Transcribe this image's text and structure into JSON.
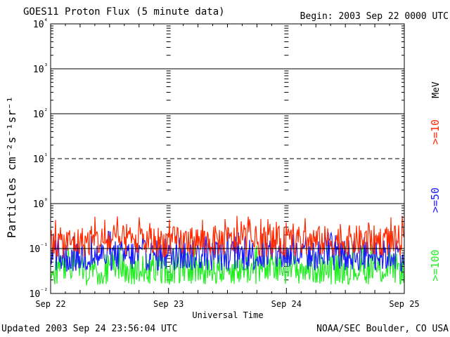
{
  "header": {
    "title": "GOES11 Proton Flux (5 minute data)",
    "begin": "Begin: 2003 Sep 22 0000 UTC"
  },
  "footer": {
    "updated": "Updated 2003 Sep 24 23:56:04 UTC",
    "credit": "NOAA/SEC Boulder, CO USA"
  },
  "chart_data": {
    "type": "line",
    "title": "GOES11 Proton Flux (5 minute data)",
    "xlabel": "Universal Time",
    "ylabel": "Particles cm⁻²s⁻¹sr⁻¹",
    "yscale": "log",
    "ylim": [
      0.01,
      10000
    ],
    "y_ticks": [
      {
        "value": 0.01,
        "label": "10⁻²"
      },
      {
        "value": 0.1,
        "label": "10⁻¹"
      },
      {
        "value": 1,
        "label": "10⁰"
      },
      {
        "value": 10,
        "label": "10¹"
      },
      {
        "value": 100,
        "label": "10²"
      },
      {
        "value": 1000,
        "label": "10³"
      },
      {
        "value": 10000,
        "label": "10⁴"
      }
    ],
    "x_ticks": [
      "Sep 22",
      "Sep 23",
      "Sep 24",
      "Sep 25"
    ],
    "xlim": [
      "2003-09-22",
      "2003-09-25"
    ],
    "reference_lines": [
      {
        "value": 10,
        "style": "dashed"
      },
      {
        "value": 0.1,
        "style": "solid",
        "color": "#000000"
      }
    ],
    "grid": true,
    "legend_unit": "MeV",
    "series": [
      {
        "name": ">=10",
        "color": "#ff2a00",
        "x": [
          "2003-09-22 00:00",
          "2003-09-22 12:00",
          "2003-09-23 00:00",
          "2003-09-23 12:00",
          "2003-09-24 00:00",
          "2003-09-24 12:00",
          "2003-09-25 00:00"
        ],
        "values": [
          0.13,
          0.15,
          0.14,
          0.15,
          0.14,
          0.15,
          0.15
        ]
      },
      {
        "name": ">=50",
        "color": "#1a1aff",
        "x": [
          "2003-09-22 00:00",
          "2003-09-22 12:00",
          "2003-09-23 00:00",
          "2003-09-23 12:00",
          "2003-09-24 00:00",
          "2003-09-24 12:00",
          "2003-09-25 00:00"
        ],
        "values": [
          0.06,
          0.07,
          0.07,
          0.07,
          0.07,
          0.07,
          0.07
        ]
      },
      {
        "name": ">=100",
        "color": "#22ee22",
        "x": [
          "2003-09-22 00:00",
          "2003-09-22 12:00",
          "2003-09-23 00:00",
          "2003-09-23 12:00",
          "2003-09-24 00:00",
          "2003-09-24 12:00",
          "2003-09-25 00:00"
        ],
        "values": [
          0.03,
          0.035,
          0.035,
          0.035,
          0.035,
          0.035,
          0.035
        ]
      }
    ]
  }
}
